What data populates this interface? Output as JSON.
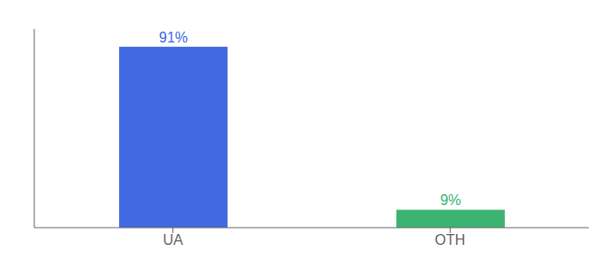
{
  "chart_data": {
    "type": "bar",
    "categories": [
      "UA",
      "OTH"
    ],
    "values": [
      91,
      9
    ],
    "value_labels": [
      "91%",
      "9%"
    ],
    "data_labels": true,
    "colors": [
      "#4169E1",
      "#3CB371"
    ],
    "ylim": [
      0,
      100
    ],
    "tick_labels": "x",
    "grid": false
  }
}
